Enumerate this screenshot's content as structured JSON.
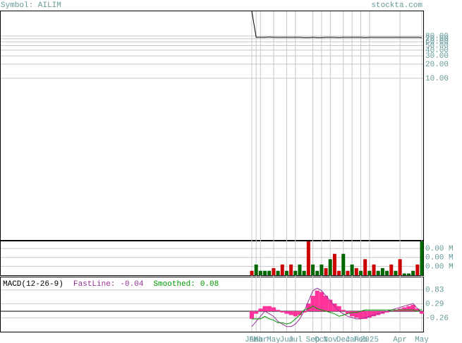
{
  "header": {
    "symbol": "Symbol: AILIM",
    "site": "stockta.com"
  },
  "chart_data": [
    {
      "type": "line",
      "log_scale": true,
      "color": "#000000",
      "values": [
        270,
        75,
        75,
        75,
        76,
        75,
        75,
        75,
        75,
        75,
        75,
        75,
        74,
        74,
        75,
        74,
        74,
        75,
        75,
        75,
        74,
        75,
        75,
        75,
        75,
        75,
        74,
        75,
        75,
        75,
        75,
        75,
        75,
        75,
        75,
        75,
        75,
        75,
        75,
        74
      ],
      "ylim": [
        0.0035,
        270
      ],
      "yticks": [
        {
          "value": 80,
          "label": "80.00"
        },
        {
          "value": 70,
          "label": "70.00"
        },
        {
          "value": 60,
          "label": "60.00"
        },
        {
          "value": 50,
          "label": "50.00"
        },
        {
          "value": 40,
          "label": "40.00"
        },
        {
          "value": 30,
          "label": "30.00"
        },
        {
          "value": 20,
          "label": "20.00"
        },
        {
          "value": 10,
          "label": "10.00"
        }
      ]
    },
    {
      "type": "bar",
      "values": [
        0.0005,
        0.0012,
        0.0005,
        0.0005,
        0.0005,
        0.0008,
        0.0005,
        0.0012,
        0.0005,
        0.0012,
        0.0005,
        0.0012,
        0.0005,
        0.0038,
        0.0012,
        0.0005,
        0.0012,
        0.0008,
        0.0018,
        0.0024,
        0.0005,
        0.0024,
        0.0005,
        0.0012,
        0.0008,
        0.0005,
        0.0018,
        0.0005,
        0.0012,
        0.0005,
        0.0008,
        0.0005,
        0.0012,
        0.0005,
        0.0018,
        0.0002,
        0.0002,
        0.0005,
        0.0012,
        0.0038
      ],
      "colors": [
        "#cc0000",
        "#006600",
        "#006600",
        "#006600",
        "#006600",
        "#cc0000",
        "#006600",
        "#cc0000",
        "#006600",
        "#cc0000",
        "#006600",
        "#006600",
        "#006600",
        "#cc0000",
        "#006600",
        "#006600",
        "#006600",
        "#cc0000",
        "#006600",
        "#cc0000",
        "#cc0000",
        "#006600",
        "#cc0000",
        "#006600",
        "#cc0000",
        "#006600",
        "#cc0000",
        "#006600",
        "#cc0000",
        "#006600",
        "#006600",
        "#006600",
        "#cc0000",
        "#006600",
        "#cc0000",
        "#006600",
        "#006600",
        "#006600",
        "#cc0000",
        "#006600"
      ],
      "ylim": [
        0,
        0.0038
      ],
      "yticks": [
        {
          "value": 0.003,
          "label": "0.00 M"
        },
        {
          "value": 0.002,
          "label": "0.00 M"
        },
        {
          "value": 0.001,
          "label": "0.00 M"
        }
      ]
    },
    {
      "type": "macd",
      "title": "MACD(12-26-9)",
      "categories": [
        "Jan",
        "Feb",
        "Mar",
        null,
        null,
        "May",
        null,
        null,
        "Jun",
        null,
        "Jul",
        null,
        null,
        null,
        "Sep",
        null,
        "Oct",
        null,
        "Nov",
        null,
        null,
        "Dec",
        null,
        "Jan",
        null,
        "Feb",
        null,
        "2025",
        null,
        null,
        null,
        null,
        null,
        null,
        "Apr",
        null,
        null,
        null,
        null,
        "May"
      ],
      "histogram": {
        "color": "#ff3399",
        "values": [
          -0.3,
          -0.1,
          0.1,
          0.2,
          0.2,
          0.15,
          0.05,
          -0.05,
          -0.1,
          -0.15,
          -0.2,
          -0.15,
          -0.05,
          0.3,
          0.6,
          0.8,
          0.75,
          0.6,
          0.45,
          0.3,
          0.2,
          0.05,
          -0.1,
          -0.2,
          -0.25,
          -0.3,
          -0.3,
          -0.25,
          -0.2,
          -0.15,
          -0.1,
          -0.05,
          0,
          0.05,
          0.1,
          0.15,
          0.2,
          0.25,
          0.1,
          -0.1
        ]
      },
      "series": [
        {
          "name": "FastLine:",
          "last_label": "-0.04",
          "color": "#993399",
          "values": [
            -0.6,
            -0.4,
            -0.2,
            0,
            -0.1,
            -0.2,
            -0.4,
            -0.5,
            -0.6,
            -0.6,
            -0.5,
            -0.3,
            0,
            0.4,
            0.8,
            0.9,
            0.8,
            0.6,
            0.4,
            0.2,
            0,
            -0.1,
            -0.2,
            -0.25,
            -0.3,
            -0.3,
            -0.25,
            -0.2,
            -0.15,
            -0.1,
            -0.05,
            0,
            0.05,
            0.1,
            0.15,
            0.2,
            0.25,
            0.3,
            0.1,
            -0.04
          ]
        },
        {
          "name": "Smoothed:",
          "last_label": "0.08",
          "color": "#009900",
          "values": [
            -0.3,
            -0.3,
            -0.3,
            -0.2,
            -0.3,
            -0.35,
            -0.45,
            -0.45,
            -0.5,
            -0.45,
            -0.3,
            -0.15,
            0.05,
            0.1,
            0.2,
            0.1,
            0.05,
            0,
            -0.05,
            -0.1,
            -0.2,
            -0.15,
            -0.1,
            -0.05,
            -0.05,
            0,
            0.05,
            0.05,
            0.05,
            0.05,
            0.05,
            0.05,
            0.05,
            0.05,
            0.05,
            0.05,
            0.05,
            0.05,
            0,
            0.08
          ]
        }
      ],
      "ylim": [
        -0.8,
        1.32
      ],
      "yticks": [
        0.83,
        0.29,
        -0.26
      ]
    }
  ]
}
